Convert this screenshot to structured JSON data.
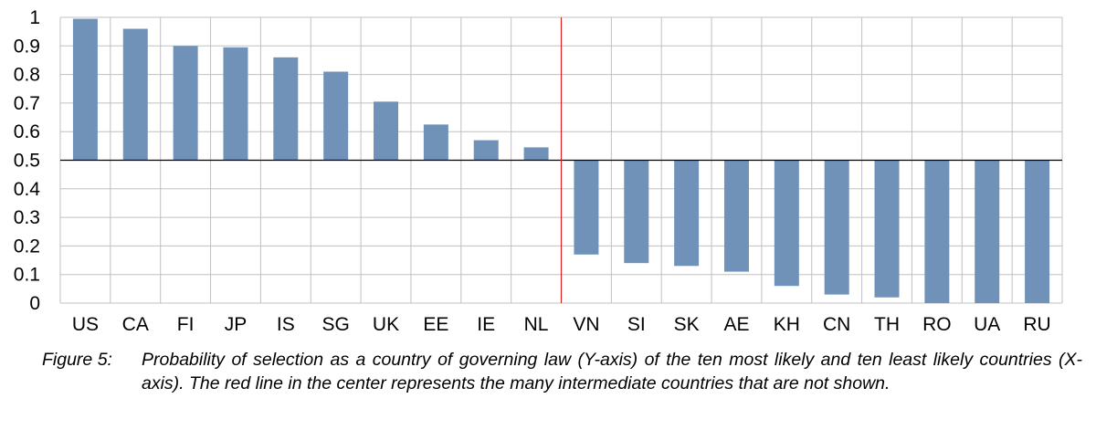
{
  "chart_data": {
    "type": "bar",
    "categories": [
      "US",
      "CA",
      "FI",
      "JP",
      "IS",
      "SG",
      "UK",
      "EE",
      "IE",
      "NL",
      "VN",
      "SI",
      "SK",
      "AE",
      "KH",
      "CN",
      "TH",
      "RO",
      "UA",
      "RU"
    ],
    "values": [
      0.995,
      0.96,
      0.9,
      0.895,
      0.86,
      0.81,
      0.705,
      0.625,
      0.57,
      0.545,
      0.17,
      0.14,
      0.13,
      0.11,
      0.06,
      0.03,
      0.02,
      0.0,
      0.0,
      0.0
    ],
    "baseline": 0.5,
    "divider_after_index": 9,
    "yticks": [
      "0",
      "0.1",
      "0.2",
      "0.3",
      "0.4",
      "0.5",
      "0.6",
      "0.7",
      "0.8",
      "0.9",
      "1"
    ],
    "ylim": [
      0,
      1
    ],
    "grid": true,
    "bar_color": "#7092b9",
    "divider_color": "#e02020",
    "grid_color": "#c0c0c0"
  },
  "caption": {
    "label": "Figure 5:",
    "text": "Probability of selection as a country of governing law (Y-axis) of the ten most likely and ten least likely countries (X-axis). The red line in the center represents the many intermediate countries that are not shown."
  }
}
